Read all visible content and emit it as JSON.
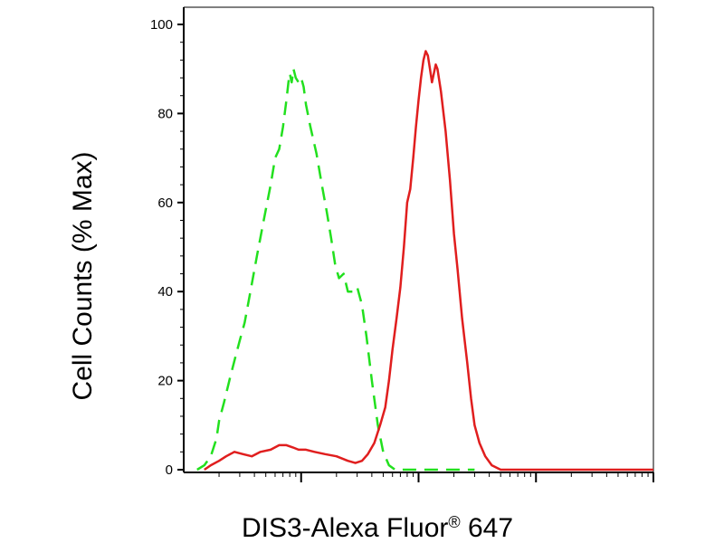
{
  "chart_data": {
    "type": "line",
    "title": "",
    "xlabel": "DIS3-Alexa Fluor",
    "xlabel_superscript": "®",
    "xlabel_suffix": " 647",
    "ylabel": "Cell Counts (% Max)",
    "x_scale": "log",
    "x_tick_labels": [],
    "ylim": [
      0,
      100
    ],
    "yticks": [
      0,
      20,
      40,
      60,
      80,
      100
    ],
    "ytick_labels": [
      "0",
      "20",
      "40",
      "60",
      "80",
      "100"
    ],
    "grid": false,
    "legend": "none",
    "series": [
      {
        "style": "dashed",
        "color": "#22e01e",
        "points": [
          [
            0.13,
            0
          ],
          [
            0.15,
            1
          ],
          [
            0.17,
            3
          ],
          [
            0.19,
            7
          ],
          [
            0.2,
            11
          ],
          [
            0.22,
            15
          ],
          [
            0.25,
            21
          ],
          [
            0.28,
            26
          ],
          [
            0.3,
            29
          ],
          [
            0.33,
            33
          ],
          [
            0.37,
            40
          ],
          [
            0.42,
            48
          ],
          [
            0.48,
            56
          ],
          [
            0.55,
            64
          ],
          [
            0.6,
            70
          ],
          [
            0.65,
            72
          ],
          [
            0.7,
            77
          ],
          [
            0.75,
            83
          ],
          [
            0.78,
            87
          ],
          [
            0.8,
            89
          ],
          [
            0.83,
            87
          ],
          [
            0.86,
            90
          ],
          [
            0.9,
            88
          ],
          [
            0.95,
            87
          ],
          [
            1.0,
            88
          ],
          [
            1.05,
            86
          ],
          [
            1.1,
            82
          ],
          [
            1.2,
            77
          ],
          [
            1.35,
            71
          ],
          [
            1.5,
            64
          ],
          [
            1.65,
            58
          ],
          [
            1.8,
            52
          ],
          [
            1.95,
            46
          ],
          [
            2.1,
            43
          ],
          [
            2.3,
            44
          ],
          [
            2.5,
            40
          ],
          [
            2.8,
            40
          ],
          [
            3.0,
            41
          ],
          [
            3.3,
            37
          ],
          [
            3.6,
            30
          ],
          [
            4.0,
            20
          ],
          [
            4.5,
            10
          ],
          [
            5.0,
            4
          ],
          [
            5.6,
            1
          ],
          [
            6.3,
            0
          ],
          [
            8,
            0
          ],
          [
            10,
            0
          ],
          [
            15,
            0
          ],
          [
            20,
            0
          ],
          [
            30,
            0
          ]
        ]
      },
      {
        "style": "solid",
        "color": "#e01e1e",
        "points": [
          [
            0.15,
            0
          ],
          [
            0.17,
            1
          ],
          [
            0.2,
            2
          ],
          [
            0.23,
            3
          ],
          [
            0.27,
            4
          ],
          [
            0.32,
            3.5
          ],
          [
            0.38,
            3
          ],
          [
            0.45,
            4
          ],
          [
            0.55,
            4.5
          ],
          [
            0.65,
            5.5
          ],
          [
            0.75,
            5.5
          ],
          [
            0.85,
            5
          ],
          [
            0.95,
            4.5
          ],
          [
            1.1,
            4.5
          ],
          [
            1.3,
            4
          ],
          [
            1.6,
            3.5
          ],
          [
            2.0,
            3
          ],
          [
            2.5,
            2
          ],
          [
            2.9,
            1.5
          ],
          [
            3.3,
            2
          ],
          [
            3.7,
            3.5
          ],
          [
            4.2,
            6
          ],
          [
            4.7,
            10
          ],
          [
            5.2,
            14
          ],
          [
            5.6,
            20
          ],
          [
            6.0,
            27
          ],
          [
            6.5,
            34
          ],
          [
            7.0,
            41
          ],
          [
            7.5,
            50
          ],
          [
            8.0,
            60
          ],
          [
            8.5,
            63
          ],
          [
            9.0,
            70
          ],
          [
            9.5,
            77
          ],
          [
            10.0,
            83
          ],
          [
            10.5,
            88
          ],
          [
            11.0,
            92
          ],
          [
            11.5,
            94
          ],
          [
            12.0,
            93
          ],
          [
            12.5,
            90
          ],
          [
            13.0,
            87
          ],
          [
            13.5,
            89
          ],
          [
            14.0,
            91
          ],
          [
            14.5,
            90
          ],
          [
            15.5,
            85
          ],
          [
            17.0,
            76
          ],
          [
            18.5,
            65
          ],
          [
            20.0,
            53
          ],
          [
            21.5,
            45
          ],
          [
            23.5,
            34
          ],
          [
            26.0,
            24
          ],
          [
            28.0,
            16
          ],
          [
            30.0,
            10
          ],
          [
            33.0,
            6
          ],
          [
            37.0,
            3
          ],
          [
            42.0,
            1
          ],
          [
            50.0,
            0
          ],
          [
            80.0,
            0
          ],
          [
            150.0,
            0
          ],
          [
            300.0,
            0
          ],
          [
            600.0,
            0
          ],
          [
            1000.0,
            0
          ]
        ]
      }
    ]
  }
}
